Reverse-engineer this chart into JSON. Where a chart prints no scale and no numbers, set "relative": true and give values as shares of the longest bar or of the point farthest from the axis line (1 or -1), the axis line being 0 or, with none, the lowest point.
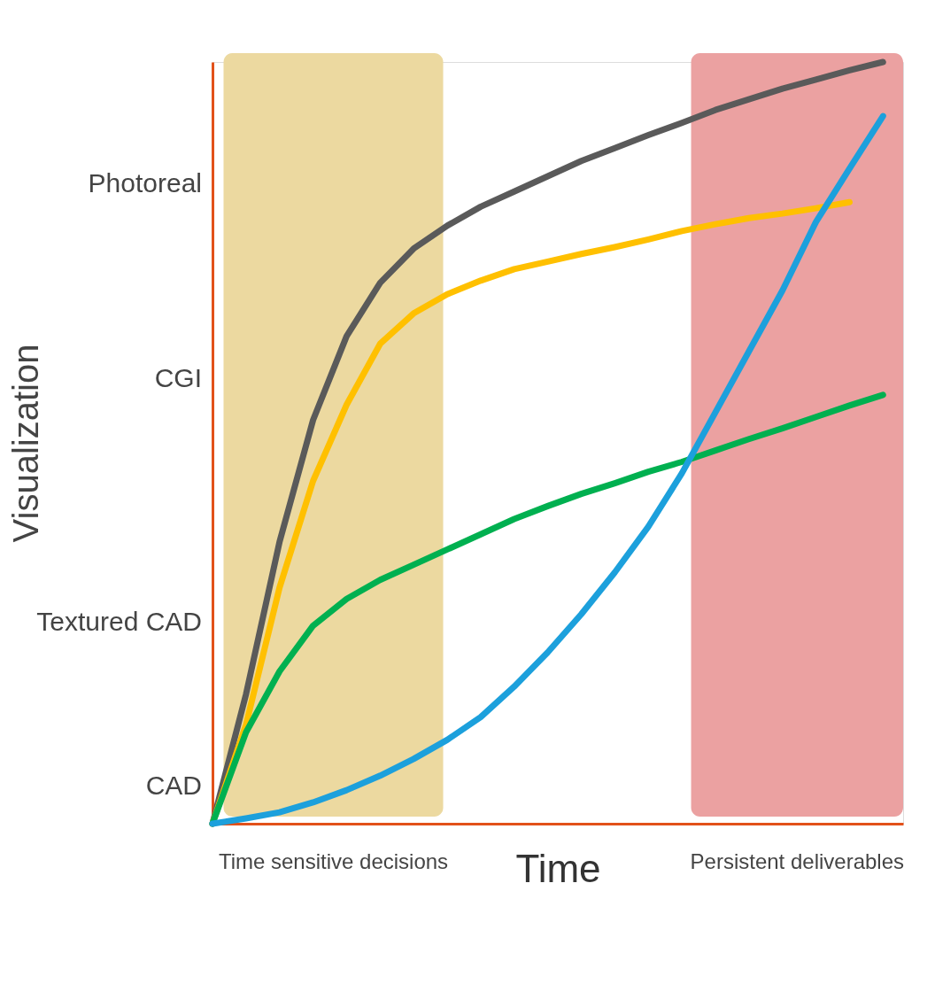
{
  "chart_data": {
    "type": "line",
    "relative": true,
    "xlabel": "Time",
    "ylabel": "Visualization",
    "tick_labels": false,
    "grid": false,
    "marker": "none",
    "line_style": "solid",
    "annotations": [
      "CAD",
      "Textured CAD",
      "CGI",
      "Photoreal",
      "Time sensitive decisions",
      "Persistent deliverables"
    ],
    "categories": [
      null,
      null,
      null,
      null,
      null,
      null,
      null,
      null,
      null,
      null,
      null,
      null,
      null,
      null,
      null,
      null,
      null,
      null,
      null,
      null,
      null
    ],
    "series": [
      {
        "color": "#5a5a5a",
        "values": [
          0,
          0.17,
          0.37,
          0.53,
          0.64,
          0.71,
          0.755,
          0.785,
          0.81,
          0.83,
          0.85,
          0.87,
          0.887,
          0.904,
          0.92,
          0.937,
          0.951,
          0.965,
          0.977,
          0.989,
          1.0
        ]
      },
      {
        "color": "#ffc000",
        "values": [
          0,
          0.13,
          0.31,
          0.45,
          0.55,
          0.63,
          0.67,
          0.695,
          0.713,
          0.728,
          0.738,
          0.748,
          0.757,
          0.767,
          0.778,
          0.787,
          0.795,
          0.801,
          0.808,
          0.816,
          null
        ]
      },
      {
        "color": "#00b050",
        "values": [
          0,
          0.12,
          0.2,
          0.26,
          0.295,
          0.32,
          0.34,
          0.36,
          0.38,
          0.4,
          0.417,
          0.433,
          0.447,
          0.462,
          0.475,
          0.49,
          0.505,
          0.519,
          0.534,
          0.549,
          0.563
        ]
      },
      {
        "color": "#1ca0dc",
        "values": [
          0,
          0.007,
          0.015,
          0.028,
          0.044,
          0.063,
          0.085,
          0.11,
          0.14,
          0.18,
          0.225,
          0.275,
          0.33,
          0.39,
          0.46,
          0.54,
          0.62,
          0.7,
          0.79,
          0.86,
          0.929
        ]
      }
    ]
  }
}
